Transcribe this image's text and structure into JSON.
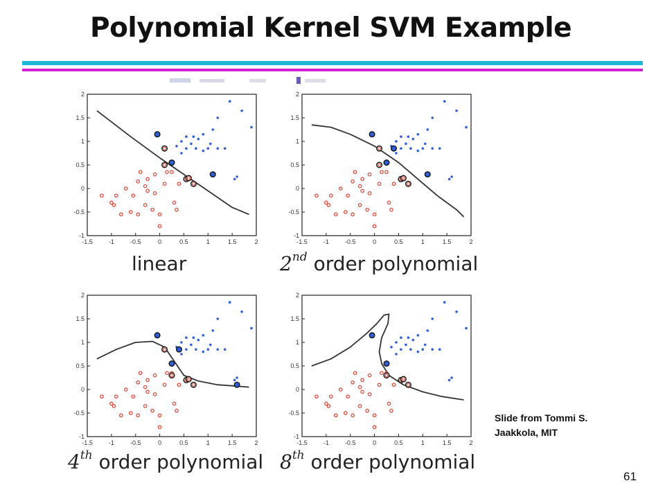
{
  "slide": {
    "title": "Polynomial Kernel SVM Example",
    "credit_line1": "Slide from Tommi S.",
    "credit_line2": "Jaakkola, MIT",
    "page_number": "61"
  },
  "colors": {
    "accent_cyan": "#1fb5d6",
    "accent_magenta": "#d21fd2",
    "class_positive": "#2f5fd8",
    "class_negative": "#e04b3a",
    "boundary": "#333333"
  },
  "panels": [
    {
      "caption_main": "linear",
      "caption_ord": "",
      "caption_sup": ""
    },
    {
      "caption_main": "order polynomial",
      "caption_ord": "2",
      "caption_sup": "nd"
    },
    {
      "caption_main": "order polynomial",
      "caption_ord": "4",
      "caption_sup": "th"
    },
    {
      "caption_main": "order polynomial",
      "caption_ord": "8",
      "caption_sup": "th"
    }
  ],
  "chart_data": {
    "type": "scatter",
    "xlim": [
      -1.5,
      2
    ],
    "ylim": [
      -1,
      2
    ],
    "x_ticks": [
      "-1.5",
      "-1",
      "-0.5",
      "0",
      "0.5",
      "1",
      "1.5",
      "2"
    ],
    "y_ticks": [
      "-1",
      "-0.5",
      "0",
      "0.5",
      "1",
      "1.5",
      "2"
    ],
    "grid": false,
    "series": [
      {
        "class": "positive",
        "points": [
          [
            1.45,
            1.85
          ],
          [
            1.7,
            1.65
          ],
          [
            1.2,
            1.5
          ],
          [
            1.9,
            1.3
          ],
          [
            1.1,
            1.25
          ],
          [
            0.9,
            1.15
          ],
          [
            0.55,
            1.1
          ],
          [
            0.7,
            1.1
          ],
          [
            0.8,
            1.05
          ],
          [
            0.45,
            1.0
          ],
          [
            0.65,
            0.95
          ],
          [
            1.05,
            0.95
          ],
          [
            0.35,
            0.9
          ],
          [
            0.55,
            0.85
          ],
          [
            0.75,
            0.85
          ],
          [
            1.0,
            0.85
          ],
          [
            1.2,
            0.85
          ],
          [
            0.9,
            0.8
          ],
          [
            1.35,
            0.85
          ],
          [
            0.45,
            0.75
          ],
          [
            1.6,
            0.25
          ],
          [
            1.55,
            0.2
          ]
        ]
      },
      {
        "class": "negative",
        "points": [
          [
            -0.4,
            0.35
          ],
          [
            -0.1,
            0.3
          ],
          [
            0.15,
            0.35
          ],
          [
            -0.45,
            0.15
          ],
          [
            -0.25,
            0.2
          ],
          [
            0.25,
            0.35
          ],
          [
            -0.7,
            0.0
          ],
          [
            -0.3,
            0.05
          ],
          [
            0.1,
            0.1
          ],
          [
            0.4,
            0.1
          ],
          [
            -1.2,
            -0.15
          ],
          [
            -0.9,
            -0.15
          ],
          [
            -0.55,
            -0.15
          ],
          [
            -0.1,
            -0.1
          ],
          [
            -0.25,
            -0.05
          ],
          [
            -1.0,
            -0.3
          ],
          [
            -0.95,
            -0.35
          ],
          [
            -0.3,
            -0.35
          ],
          [
            0.3,
            -0.3
          ],
          [
            -0.6,
            -0.5
          ],
          [
            -0.15,
            -0.45
          ],
          [
            0.35,
            -0.45
          ],
          [
            0.0,
            -0.55
          ],
          [
            -0.8,
            -0.55
          ],
          [
            -0.45,
            -0.55
          ],
          [
            0.0,
            -0.8
          ]
        ]
      }
    ],
    "support_vectors": [
      [
        {
          "class": "positive",
          "x": -0.05,
          "y": 1.15
        },
        {
          "class": "positive",
          "x": 0.25,
          "y": 0.55
        },
        {
          "class": "positive",
          "x": 1.1,
          "y": 0.3
        },
        {
          "class": "negative",
          "x": 0.1,
          "y": 0.85
        },
        {
          "class": "negative",
          "x": 0.1,
          "y": 0.5
        },
        {
          "class": "negative",
          "x": 0.55,
          "y": 0.2
        },
        {
          "class": "negative",
          "x": 0.7,
          "y": 0.1
        },
        {
          "class": "negative",
          "x": 0.6,
          "y": 0.22
        }
      ],
      [
        {
          "class": "positive",
          "x": -0.05,
          "y": 1.15
        },
        {
          "class": "positive",
          "x": 0.25,
          "y": 0.55
        },
        {
          "class": "positive",
          "x": 0.4,
          "y": 0.85
        },
        {
          "class": "positive",
          "x": 1.1,
          "y": 0.3
        },
        {
          "class": "negative",
          "x": 0.1,
          "y": 0.85
        },
        {
          "class": "negative",
          "x": 0.1,
          "y": 0.5
        },
        {
          "class": "negative",
          "x": 0.55,
          "y": 0.2
        },
        {
          "class": "negative",
          "x": 0.7,
          "y": 0.1
        },
        {
          "class": "negative",
          "x": 0.6,
          "y": 0.22
        }
      ],
      [
        {
          "class": "positive",
          "x": -0.05,
          "y": 1.15
        },
        {
          "class": "positive",
          "x": 0.25,
          "y": 0.55
        },
        {
          "class": "positive",
          "x": 0.4,
          "y": 0.85
        },
        {
          "class": "positive",
          "x": 1.6,
          "y": 0.1
        },
        {
          "class": "negative",
          "x": 0.1,
          "y": 0.85
        },
        {
          "class": "negative",
          "x": 0.25,
          "y": 0.3
        },
        {
          "class": "negative",
          "x": 0.55,
          "y": 0.2
        },
        {
          "class": "negative",
          "x": 0.7,
          "y": 0.1
        },
        {
          "class": "negative",
          "x": 0.6,
          "y": 0.22
        }
      ],
      [
        {
          "class": "positive",
          "x": -0.05,
          "y": 1.15
        },
        {
          "class": "positive",
          "x": 0.25,
          "y": 0.55
        },
        {
          "class": "negative",
          "x": 0.25,
          "y": 0.3
        },
        {
          "class": "negative",
          "x": 0.55,
          "y": 0.2
        },
        {
          "class": "negative",
          "x": 0.7,
          "y": 0.1
        },
        {
          "class": "negative",
          "x": 0.6,
          "y": 0.22
        }
      ]
    ],
    "boundaries": [
      [
        [
          -1.3,
          1.65
        ],
        [
          -0.6,
          1.1
        ],
        [
          0.0,
          0.65
        ],
        [
          0.5,
          0.3
        ],
        [
          1.0,
          -0.05
        ],
        [
          1.5,
          -0.4
        ],
        [
          1.85,
          -0.55
        ]
      ],
      [
        [
          -1.3,
          1.35
        ],
        [
          -0.9,
          1.3
        ],
        [
          -0.5,
          1.15
        ],
        [
          0.0,
          0.9
        ],
        [
          0.5,
          0.55
        ],
        [
          0.9,
          0.2
        ],
        [
          1.3,
          -0.15
        ],
        [
          1.7,
          -0.45
        ],
        [
          1.85,
          -0.6
        ]
      ],
      [
        [
          -1.3,
          0.65
        ],
        [
          -0.9,
          0.85
        ],
        [
          -0.5,
          1.0
        ],
        [
          -0.15,
          1.02
        ],
        [
          0.1,
          0.9
        ],
        [
          0.3,
          0.6
        ],
        [
          0.5,
          0.3
        ],
        [
          0.8,
          0.18
        ],
        [
          1.2,
          0.1
        ],
        [
          1.6,
          0.07
        ],
        [
          1.85,
          0.05
        ]
      ],
      [
        [
          -1.3,
          0.5
        ],
        [
          -0.9,
          0.65
        ],
        [
          -0.5,
          0.9
        ],
        [
          -0.15,
          1.2
        ],
        [
          0.05,
          1.4
        ],
        [
          0.2,
          1.58
        ],
        [
          0.3,
          1.6
        ],
        [
          0.28,
          1.4
        ],
        [
          0.15,
          1.1
        ],
        [
          0.1,
          0.8
        ],
        [
          0.15,
          0.55
        ],
        [
          0.3,
          0.3
        ],
        [
          0.6,
          0.1
        ],
        [
          1.0,
          -0.05
        ],
        [
          1.4,
          -0.15
        ],
        [
          1.85,
          -0.22
        ]
      ]
    ]
  }
}
